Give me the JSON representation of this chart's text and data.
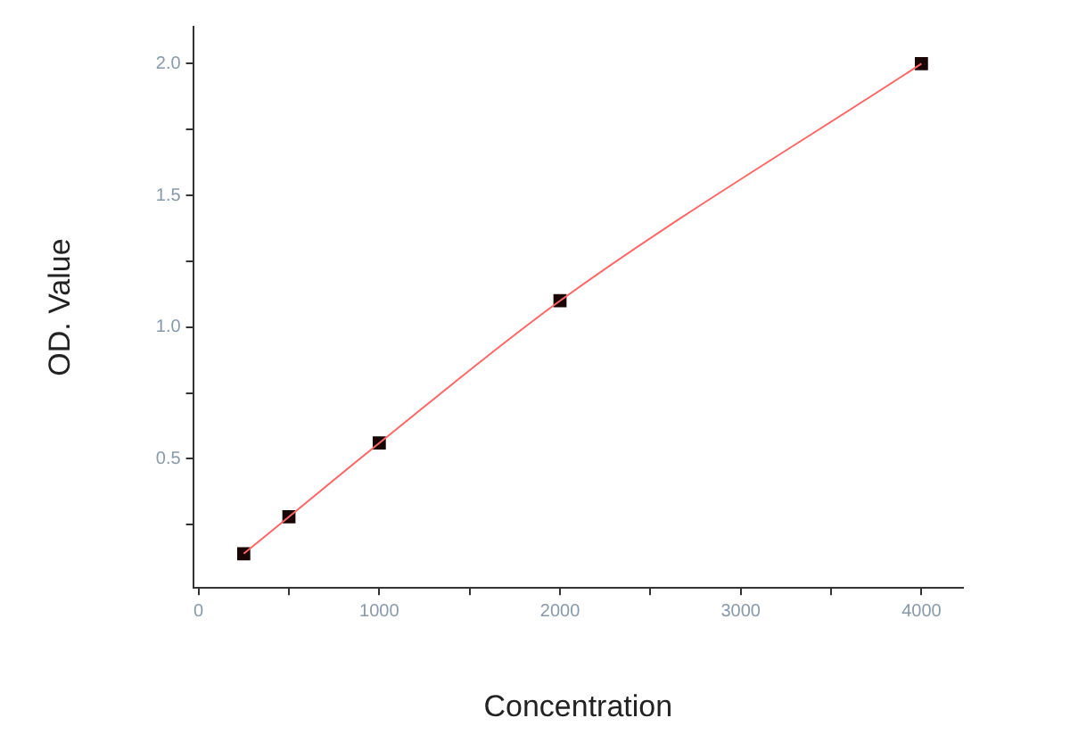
{
  "chart_data": {
    "type": "scatter",
    "xlabel": "Concentration",
    "ylabel": "OD. Value",
    "xlim": [
      -30,
      4230
    ],
    "ylim": [
      0.01,
      2.14
    ],
    "xticks": [
      0,
      {
        "value": 500,
        "label": null
      },
      1000,
      {
        "value": 1500,
        "label": null
      },
      2000,
      {
        "value": 2500,
        "label": null
      },
      3000,
      {
        "value": 3500,
        "label": null
      },
      4000
    ],
    "yticks": [
      {
        "value": 0.25,
        "label": null
      },
      {
        "value": 0.5,
        "label": "0.5"
      },
      {
        "value": 0.75,
        "label": null
      },
      {
        "value": 1,
        "label": "1.0"
      },
      {
        "value": 1.25,
        "label": null
      },
      {
        "value": 1.5,
        "label": "1.5"
      },
      {
        "value": 1.75,
        "label": null
      },
      {
        "value": 2,
        "label": "2.0"
      }
    ],
    "grid": false,
    "legend": false,
    "series": [
      {
        "type": "line",
        "color": "#ff6666",
        "x": [
          250,
          500,
          1000,
          2000,
          4000
        ],
        "values": [
          0.14,
          0.28,
          0.56,
          1.1,
          2.0
        ],
        "marker": "none",
        "line_style": "solid"
      },
      {
        "color": "#1a0505",
        "x": [
          250,
          500,
          1000,
          2000,
          4000
        ],
        "values": [
          0.14,
          0.28,
          0.56,
          1.1,
          2.0
        ],
        "marker": "square"
      }
    ]
  }
}
